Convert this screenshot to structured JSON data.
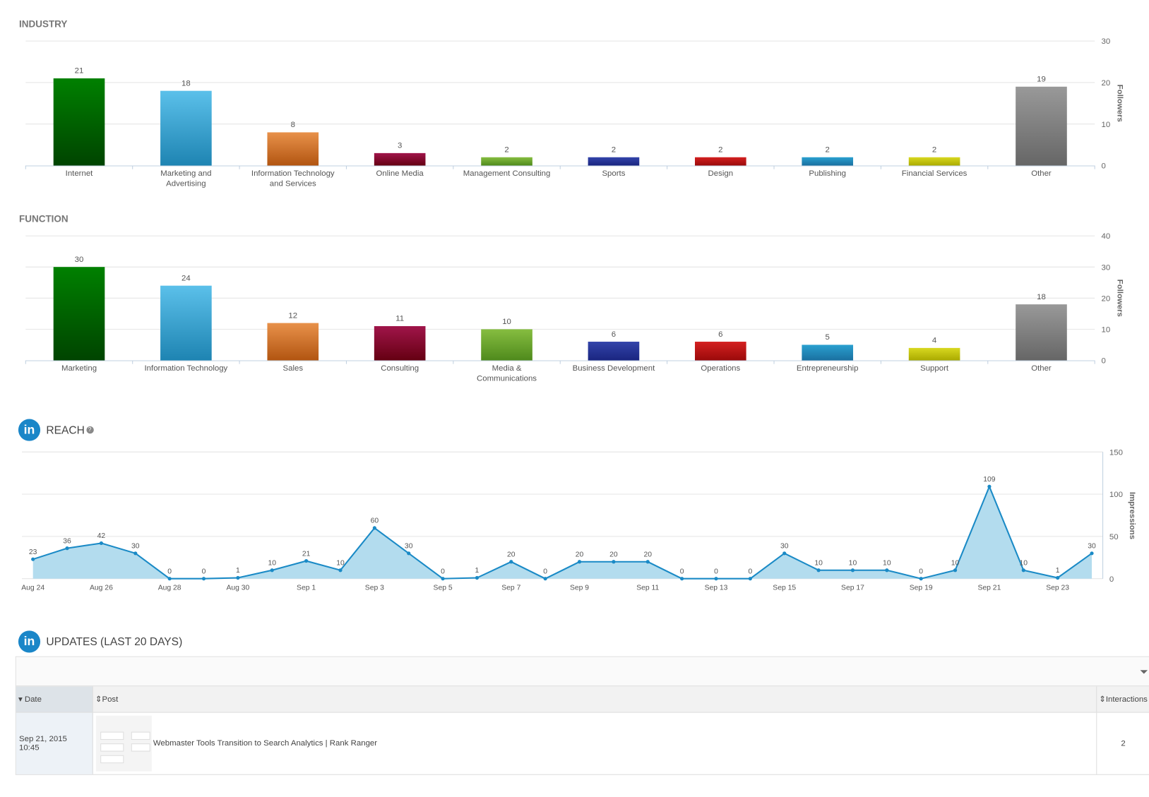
{
  "industry": {
    "title": "INDUSTRY",
    "chart_data": {
      "type": "bar",
      "categories": [
        [
          "Internet"
        ],
        [
          "Marketing and",
          "Advertising"
        ],
        [
          "Information Technology",
          "and Services"
        ],
        [
          "Online Media"
        ],
        [
          "Management Consulting"
        ],
        [
          "Sports"
        ],
        [
          "Design"
        ],
        [
          "Publishing"
        ],
        [
          "Financial Services"
        ],
        [
          "Other"
        ]
      ],
      "values": [
        21,
        18,
        8,
        3,
        2,
        2,
        2,
        2,
        2,
        19
      ],
      "colors": [
        [
          "#008000",
          "#004400"
        ],
        [
          "#5bc0ea",
          "#1e84b2"
        ],
        [
          "#e8914a",
          "#b25511"
        ],
        [
          "#a0154a",
          "#650012"
        ],
        [
          "#86bd40",
          "#4f8a1c"
        ],
        [
          "#3344aa",
          "#1a2580"
        ],
        [
          "#d42020",
          "#9a0a0a"
        ],
        [
          "#2aa0d0",
          "#1a70a0"
        ],
        [
          "#d8d820",
          "#aaaa00"
        ],
        [
          "#999999",
          "#666666"
        ]
      ],
      "ylabel": "Followers",
      "ylim": [
        0,
        30
      ],
      "yticks": [
        0,
        10,
        20,
        30
      ]
    }
  },
  "function": {
    "title": "FUNCTION",
    "chart_data": {
      "type": "bar",
      "categories": [
        [
          "Marketing"
        ],
        [
          "Information Technology"
        ],
        [
          "Sales"
        ],
        [
          "Consulting"
        ],
        [
          "Media &",
          "Communications"
        ],
        [
          "Business Development"
        ],
        [
          "Operations"
        ],
        [
          "Entrepreneurship"
        ],
        [
          "Support"
        ],
        [
          "Other"
        ]
      ],
      "values": [
        30,
        24,
        12,
        11,
        10,
        6,
        6,
        5,
        4,
        18
      ],
      "colors": [
        [
          "#008000",
          "#004400"
        ],
        [
          "#5bc0ea",
          "#1e84b2"
        ],
        [
          "#e8914a",
          "#b25511"
        ],
        [
          "#a0154a",
          "#650012"
        ],
        [
          "#86bd40",
          "#4f8a1c"
        ],
        [
          "#3344aa",
          "#1a2580"
        ],
        [
          "#d42020",
          "#9a0a0a"
        ],
        [
          "#2aa0d0",
          "#1a70a0"
        ],
        [
          "#d8d820",
          "#aaaa00"
        ],
        [
          "#999999",
          "#666666"
        ]
      ],
      "ylabel": "Followers",
      "ylim": [
        0,
        40
      ],
      "yticks": [
        0,
        10,
        20,
        30,
        40
      ]
    }
  },
  "reach": {
    "title": "REACH",
    "help_icon": "?",
    "logo": "in",
    "chart_data": {
      "type": "area",
      "x": [
        "Aug 24",
        "Aug 25",
        "Aug 26",
        "Aug 27",
        "Aug 28",
        "Aug 29",
        "Aug 30",
        "Aug 31",
        "Sep 1",
        "Sep 2",
        "Sep 3",
        "Sep 4",
        "Sep 5",
        "Sep 6",
        "Sep 7",
        "Sep 8",
        "Sep 9",
        "Sep 10",
        "Sep 11",
        "Sep 12",
        "Sep 13",
        "Sep 14",
        "Sep 15",
        "Sep 16",
        "Sep 17",
        "Sep 18",
        "Sep 19",
        "Sep 20",
        "Sep 21",
        "Sep 22",
        "Sep 23",
        "Sep 24"
      ],
      "values": [
        23,
        36,
        42,
        30,
        0,
        0,
        1,
        10,
        21,
        10,
        60,
        30,
        0,
        1,
        20,
        0,
        20,
        20,
        20,
        0,
        0,
        0,
        30,
        10,
        10,
        10,
        0,
        10,
        109,
        10,
        1,
        30
      ],
      "ylabel": "Impressions",
      "ylim": [
        0,
        150
      ],
      "yticks": [
        0,
        50,
        100,
        150
      ],
      "color": "#1a8ac6",
      "fill": "#b3dcee"
    }
  },
  "updates": {
    "title": "UPDATES (LAST 20 DAYS)",
    "logo": "in",
    "columns": [
      "Date",
      "Post",
      "Interactions"
    ],
    "rows": [
      {
        "date": "Sep 21, 2015",
        "time": "10:45",
        "post": "Webmaster Tools Transition to Search Analytics | Rank Ranger",
        "interactions": "2"
      }
    ]
  }
}
